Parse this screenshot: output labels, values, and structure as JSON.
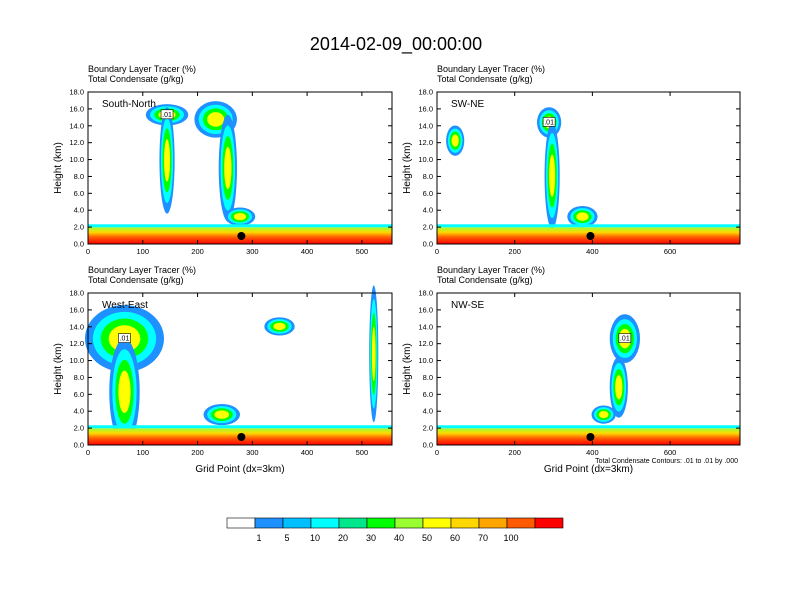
{
  "chart_data": {
    "type": "heatmap",
    "title": "2014-02-09_00:00:00",
    "panel_titles": [
      "Boundary Layer Tracer   (%)",
      "Total Condensate   (g/kg)"
    ],
    "ylabel": "Height (km)",
    "xlabel": "Grid Point (dx=3km)",
    "ylim": [
      0,
      18
    ],
    "y_ticks": [
      "0.0",
      "2.0",
      "4.0",
      "6.0",
      "8.0",
      "10.0",
      "12.0",
      "14.0",
      "16.0",
      "18.0"
    ],
    "contour_note": "Total Condensate Contours: .01 to .01 by .000",
    "contour_label": ".01",
    "colorbar": {
      "levels": [
        "1",
        "5",
        "10",
        "20",
        "30",
        "40",
        "50",
        "60",
        "70",
        "100"
      ],
      "colors": [
        "#ffffff",
        "#1e90ff",
        "#00bfff",
        "#00ffff",
        "#00e68a",
        "#00ff00",
        "#9aff32",
        "#ffff00",
        "#ffd700",
        "#ffa500",
        "#ff5a00",
        "#ff0000"
      ]
    },
    "panels": [
      {
        "name": "South-North",
        "xlim": [
          0,
          555
        ],
        "x_ticks": [
          0,
          100,
          200,
          300,
          400,
          500
        ],
        "marker_x": 280
      },
      {
        "name": "SW-NE",
        "xlim": [
          0,
          780
        ],
        "x_ticks": [
          0,
          200,
          400,
          600
        ],
        "marker_x": 395
      },
      {
        "name": "West-East",
        "xlim": [
          0,
          555
        ],
        "x_ticks": [
          0,
          100,
          200,
          300,
          400,
          500
        ],
        "marker_x": 280
      },
      {
        "name": "NW-SE",
        "xlim": [
          0,
          780
        ],
        "x_ticks": [
          0,
          200,
          400,
          600
        ],
        "marker_x": 395
      }
    ]
  }
}
